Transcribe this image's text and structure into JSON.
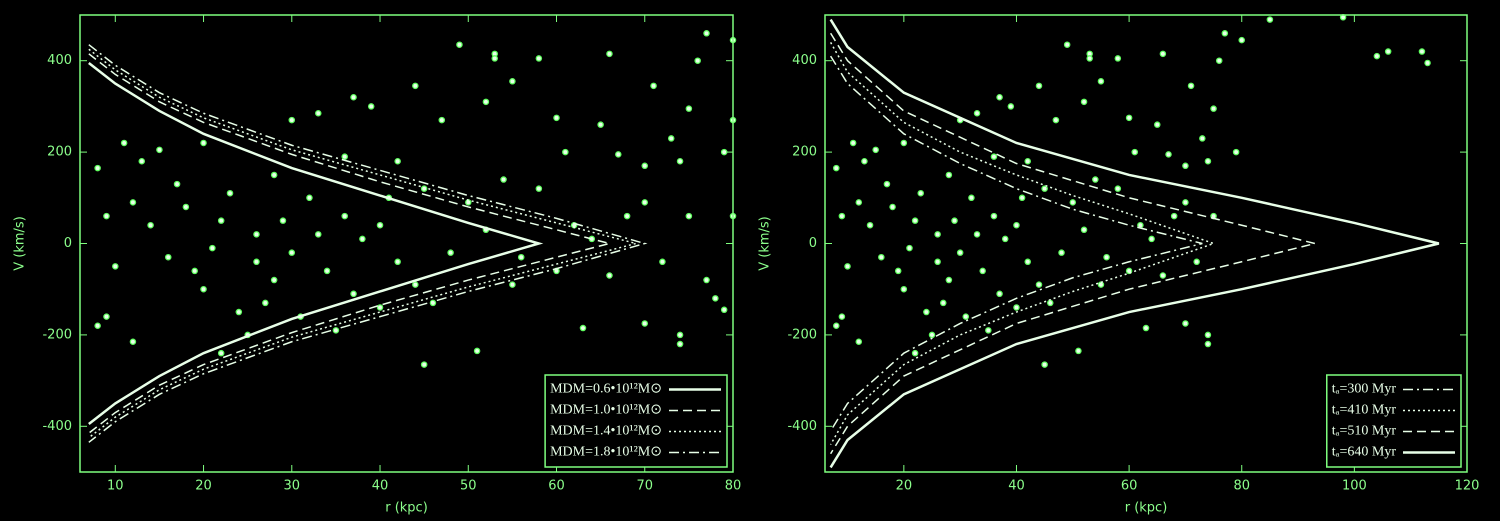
{
  "chart_data": [
    {
      "type": "scatter",
      "xlabel": "r (kpc)",
      "ylabel": "V (km/s)",
      "xlim": [
        6,
        80
      ],
      "ylim": [
        -500,
        500
      ],
      "xticks": [
        10,
        20,
        30,
        40,
        50,
        60,
        70,
        80
      ],
      "yticks": [
        -400,
        -200,
        0,
        200,
        400
      ],
      "legend": "lower right",
      "axis_color": "#7fff7f",
      "point_color": "#5fff5f",
      "curve_color": "#e8ffe8",
      "points": {
        "x": [
          49,
          53,
          53,
          58,
          66,
          71,
          77,
          80,
          76,
          55,
          52,
          44,
          37,
          47,
          39,
          33,
          60,
          65,
          75,
          73,
          80,
          79,
          74,
          70,
          61,
          67,
          45,
          51,
          74,
          74,
          79,
          78,
          70,
          63,
          12,
          8,
          9,
          13,
          15,
          11,
          8,
          20,
          30,
          36,
          42,
          28,
          25,
          35,
          22,
          40,
          55,
          60,
          66,
          72,
          62,
          68,
          58,
          54,
          45,
          50,
          18,
          22,
          26,
          30,
          34,
          38,
          42,
          16,
          20,
          24,
          28,
          32,
          36,
          40,
          44,
          48,
          52,
          56,
          14,
          10,
          17,
          27,
          31,
          46,
          64,
          70,
          75,
          80,
          77,
          23,
          19,
          29,
          33,
          37,
          41,
          26,
          21,
          12,
          9
        ],
        "values": [
          435,
          415,
          405,
          405,
          415,
          345,
          460,
          445,
          400,
          355,
          310,
          345,
          320,
          270,
          300,
          285,
          275,
          260,
          295,
          230,
          270,
          200,
          180,
          170,
          200,
          195,
          -265,
          -235,
          -200,
          -220,
          -145,
          -120,
          -175,
          -185,
          -215,
          -180,
          -160,
          180,
          205,
          220,
          165,
          220,
          270,
          190,
          180,
          150,
          -200,
          -190,
          -240,
          -140,
          -90,
          -60,
          -70,
          -40,
          40,
          60,
          120,
          140,
          120,
          90,
          80,
          50,
          20,
          -20,
          -60,
          10,
          -40,
          -30,
          -100,
          -150,
          -80,
          100,
          60,
          40,
          -90,
          -20,
          30,
          -30,
          40,
          -50,
          130,
          -130,
          -160,
          -130,
          10,
          90,
          60,
          60,
          -80,
          110,
          -60,
          50,
          20,
          -110,
          100,
          -40,
          -10,
          90,
          60
        ]
      },
      "series": [
        {
          "name": "MDM=0.6•10¹²M⊙",
          "style": "solid",
          "x": [
            7,
            10,
            15,
            20,
            30,
            40,
            50,
            58,
            50,
            40,
            30,
            20,
            15,
            10,
            7
          ],
          "values": [
            395,
            350,
            290,
            240,
            165,
            105,
            45,
            0,
            -45,
            -105,
            -165,
            -240,
            -290,
            -350,
            -395
          ]
        },
        {
          "name": "MDM=1.0•10¹²M⊙",
          "style": "dashed",
          "x": [
            7,
            10,
            15,
            20,
            30,
            40,
            50,
            60,
            66,
            60,
            50,
            40,
            30,
            20,
            15,
            10,
            7
          ],
          "values": [
            415,
            370,
            310,
            265,
            195,
            135,
            80,
            30,
            0,
            -30,
            -80,
            -135,
            -195,
            -265,
            -310,
            -370,
            -415
          ]
        },
        {
          "name": "MDM=1.4•10¹²M⊙",
          "style": "dotted",
          "x": [
            7,
            10,
            15,
            20,
            30,
            40,
            50,
            60,
            69,
            60,
            50,
            40,
            30,
            20,
            15,
            10,
            7
          ],
          "values": [
            425,
            380,
            320,
            275,
            205,
            150,
            95,
            45,
            0,
            -45,
            -95,
            -150,
            -205,
            -275,
            -320,
            -380,
            -425
          ]
        },
        {
          "name": "MDM=1.8•10¹²M⊙",
          "style": "dashdot",
          "x": [
            7,
            10,
            15,
            20,
            30,
            40,
            50,
            60,
            70,
            60,
            50,
            40,
            30,
            20,
            15,
            10,
            7
          ],
          "values": [
            435,
            390,
            330,
            285,
            215,
            160,
            105,
            55,
            0,
            -55,
            -105,
            -160,
            -215,
            -285,
            -330,
            -390,
            -435
          ]
        }
      ]
    },
    {
      "type": "scatter",
      "xlabel": "r (kpc)",
      "ylabel": "V (km/s)",
      "xlim": [
        6,
        120
      ],
      "ylim": [
        -500,
        500
      ],
      "xticks": [
        20,
        40,
        60,
        80,
        100,
        120
      ],
      "yticks": [
        -400,
        -200,
        0,
        200,
        400
      ],
      "legend": "lower right",
      "axis_color": "#7fff7f",
      "point_color": "#5fff5f",
      "curve_color": "#e8ffe8",
      "points": {
        "x": [
          49,
          53,
          53,
          58,
          66,
          71,
          77,
          80,
          76,
          55,
          52,
          44,
          37,
          47,
          39,
          33,
          60,
          65,
          75,
          73,
          79,
          74,
          70,
          61,
          67,
          45,
          51,
          74,
          74,
          70,
          63,
          12,
          8,
          9,
          13,
          15,
          11,
          8,
          20,
          30,
          36,
          42,
          28,
          25,
          35,
          22,
          40,
          55,
          60,
          66,
          72,
          62,
          68,
          58,
          54,
          45,
          50,
          18,
          22,
          26,
          30,
          34,
          38,
          42,
          16,
          20,
          24,
          28,
          32,
          36,
          40,
          44,
          48,
          52,
          56,
          14,
          10,
          17,
          27,
          31,
          46,
          64,
          70,
          75,
          23,
          19,
          29,
          33,
          37,
          41,
          26,
          21,
          12,
          9,
          104,
          106,
          112,
          113,
          85,
          98
        ],
        "values": [
          435,
          415,
          405,
          405,
          415,
          345,
          460,
          445,
          400,
          355,
          310,
          345,
          320,
          270,
          300,
          285,
          275,
          260,
          295,
          230,
          200,
          180,
          170,
          200,
          195,
          -265,
          -235,
          -200,
          -220,
          -175,
          -185,
          -215,
          -180,
          -160,
          180,
          205,
          220,
          165,
          220,
          270,
          190,
          180,
          150,
          -200,
          -190,
          -240,
          -140,
          -90,
          -60,
          -70,
          -40,
          40,
          60,
          120,
          140,
          120,
          90,
          80,
          50,
          20,
          -20,
          -60,
          10,
          -40,
          -30,
          -100,
          -150,
          -80,
          100,
          60,
          40,
          -90,
          -20,
          30,
          -30,
          40,
          -50,
          130,
          -130,
          -160,
          -130,
          10,
          90,
          60,
          110,
          -60,
          50,
          20,
          -110,
          100,
          -40,
          -10,
          90,
          60,
          410,
          420,
          420,
          395,
          490,
          495
        ]
      },
      "series": [
        {
          "name": "tₐ=300 Myr",
          "style": "dashdot",
          "x": [
            7,
            10,
            20,
            30,
            40,
            50,
            60,
            73,
            60,
            50,
            40,
            30,
            20,
            10,
            7
          ],
          "values": [
            410,
            350,
            240,
            175,
            120,
            75,
            40,
            0,
            -40,
            -75,
            -120,
            -175,
            -240,
            -350,
            -410
          ]
        },
        {
          "name": "tₐ=410 Myr",
          "style": "dotted",
          "x": [
            7,
            10,
            20,
            30,
            40,
            50,
            60,
            75,
            60,
            50,
            40,
            30,
            20,
            10,
            7
          ],
          "values": [
            440,
            375,
            265,
            200,
            150,
            105,
            65,
            0,
            -65,
            -105,
            -150,
            -200,
            -265,
            -375,
            -440
          ]
        },
        {
          "name": "tₐ=510 Myr",
          "style": "dashed",
          "x": [
            7,
            10,
            20,
            40,
            60,
            80,
            93,
            80,
            60,
            40,
            20,
            10,
            7
          ],
          "values": [
            460,
            400,
            290,
            175,
            100,
            40,
            0,
            -40,
            -100,
            -175,
            -290,
            -400,
            -460
          ]
        },
        {
          "name": "tₐ=640 Myr",
          "style": "solid",
          "x": [
            7,
            10,
            20,
            40,
            60,
            80,
            100,
            115,
            100,
            80,
            60,
            40,
            20,
            10,
            7
          ],
          "values": [
            490,
            430,
            330,
            220,
            150,
            100,
            45,
            0,
            -45,
            -100,
            -150,
            -220,
            -330,
            -430,
            -490
          ]
        }
      ]
    }
  ]
}
